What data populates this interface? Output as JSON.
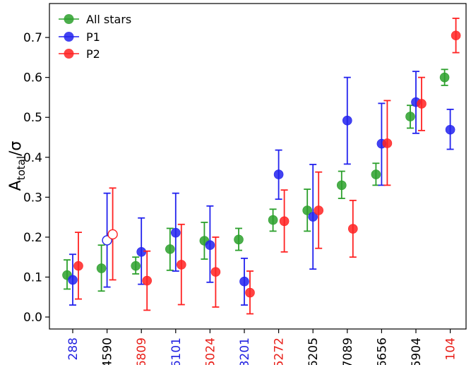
{
  "chart_data": {
    "type": "scatter",
    "title": "",
    "xlabel": "",
    "ylabel": {
      "main": "A",
      "sub": "total",
      "tail": "/σ"
    },
    "ylim": [
      -0.03,
      0.785
    ],
    "yticks": [
      "0.0",
      "0.1",
      "0.2",
      "0.3",
      "0.4",
      "0.5",
      "0.6",
      "0.7"
    ],
    "yticks_values": [
      0.0,
      0.1,
      0.2,
      0.3,
      0.4,
      0.5,
      0.6,
      0.7
    ],
    "grid": false,
    "legend_position": "top-left",
    "colors": {
      "All stars": "#2ca02c",
      "P1": "#2222ee",
      "P2": "#ff2222"
    },
    "categories": [
      {
        "label": "288",
        "color": "#1f1fe0"
      },
      {
        "label": "4590",
        "color": "#000000"
      },
      {
        "label": "6809",
        "color": "#e8201a"
      },
      {
        "label": "6101",
        "color": "#1f1fe0"
      },
      {
        "label": "5024",
        "color": "#e8201a"
      },
      {
        "label": "3201",
        "color": "#1f1fe0"
      },
      {
        "label": "5272",
        "color": "#e8201a"
      },
      {
        "label": "6205",
        "color": "#000000"
      },
      {
        "label": "7089",
        "color": "#000000"
      },
      {
        "label": "6656",
        "color": "#000000"
      },
      {
        "label": "5904",
        "color": "#000000"
      },
      {
        "label": "104",
        "color": "#e8201a"
      }
    ],
    "series": [
      {
        "name": "All stars",
        "values": [
          0.105,
          0.122,
          0.128,
          0.17,
          0.191,
          0.194,
          0.243,
          0.267,
          0.33,
          0.357,
          0.502,
          0.6
        ],
        "err_low": [
          0.07,
          0.065,
          0.108,
          0.117,
          0.145,
          0.167,
          0.215,
          0.215,
          0.297,
          0.33,
          0.473,
          0.58
        ],
        "err_high": [
          0.143,
          0.18,
          0.15,
          0.222,
          0.237,
          0.222,
          0.27,
          0.32,
          0.365,
          0.385,
          0.53,
          0.62
        ]
      },
      {
        "name": "P1",
        "values": [
          0.093,
          0.192,
          0.163,
          0.211,
          0.18,
          0.089,
          0.357,
          0.251,
          0.492,
          0.434,
          0.538,
          0.469
        ],
        "err_low": [
          0.03,
          0.075,
          0.082,
          0.115,
          0.087,
          0.03,
          0.295,
          0.12,
          0.383,
          0.33,
          0.46,
          0.42
        ],
        "err_high": [
          0.157,
          0.31,
          0.248,
          0.31,
          0.278,
          0.147,
          0.418,
          0.382,
          0.6,
          0.535,
          0.615,
          0.52
        ],
        "open_marker_index": [
          1
        ]
      },
      {
        "name": "P2",
        "values": [
          0.128,
          0.207,
          0.091,
          0.131,
          0.113,
          0.061,
          0.24,
          0.267,
          0.221,
          0.435,
          0.534,
          0.705
        ],
        "err_low": [
          0.045,
          0.093,
          0.017,
          0.031,
          0.025,
          0.008,
          0.163,
          0.172,
          0.15,
          0.33,
          0.467,
          0.662
        ],
        "err_high": [
          0.212,
          0.323,
          0.165,
          0.232,
          0.2,
          0.115,
          0.318,
          0.363,
          0.292,
          0.542,
          0.6,
          0.748
        ],
        "open_marker_index": [
          1
        ]
      }
    ]
  }
}
